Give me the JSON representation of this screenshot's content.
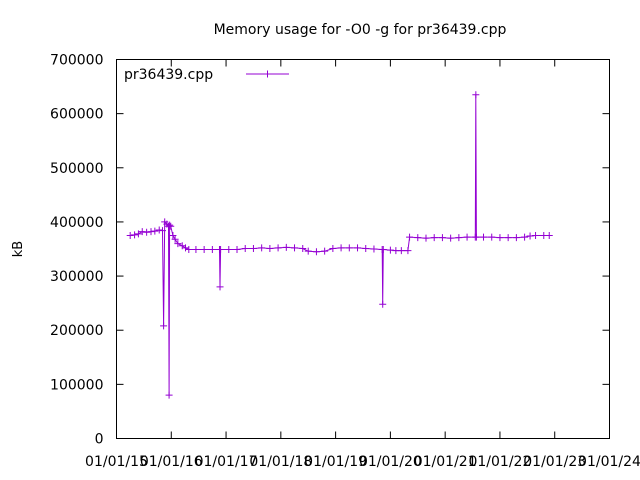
{
  "chart_data": {
    "type": "line",
    "title": "Memory usage for -O0 -g for pr36439.cpp",
    "xlabel": "",
    "ylabel": "kB",
    "xlim": [
      2015.0,
      2024.0
    ],
    "ylim": [
      0,
      700000
    ],
    "x_ticks": [
      {
        "x": 2015,
        "label": "01/01/15"
      },
      {
        "x": 2016,
        "label": "01/01/16"
      },
      {
        "x": 2017,
        "label": "01/01/17"
      },
      {
        "x": 2018,
        "label": "01/01/18"
      },
      {
        "x": 2019,
        "label": "01/01/19"
      },
      {
        "x": 2020,
        "label": "01/01/20"
      },
      {
        "x": 2021,
        "label": "01/01/21"
      },
      {
        "x": 2022,
        "label": "01/01/22"
      },
      {
        "x": 2023,
        "label": "01/01/23"
      },
      {
        "x": 2024,
        "label": "01/01/24"
      }
    ],
    "y_ticks": [
      {
        "y": 0,
        "label": "0"
      },
      {
        "y": 100000,
        "label": "100000"
      },
      {
        "y": 200000,
        "label": "200000"
      },
      {
        "y": 300000,
        "label": "300000"
      },
      {
        "y": 400000,
        "label": "400000"
      },
      {
        "y": 500000,
        "label": "500000"
      },
      {
        "y": 600000,
        "label": "600000"
      },
      {
        "y": 700000,
        "label": "700000"
      }
    ],
    "grid": false,
    "legend": "top-left",
    "series": [
      {
        "name": "pr36439.cpp",
        "color": "#9400d3",
        "points": [
          [
            2015.25,
            375000
          ],
          [
            2015.33,
            376000
          ],
          [
            2015.4,
            378000
          ],
          [
            2015.47,
            382000
          ],
          [
            2015.55,
            381000
          ],
          [
            2015.63,
            382000
          ],
          [
            2015.7,
            383000
          ],
          [
            2015.78,
            385000
          ],
          [
            2015.84,
            384000
          ],
          [
            2015.86,
            208000
          ],
          [
            2015.88,
            400000
          ],
          [
            2015.92,
            396000
          ],
          [
            2015.95,
            392000
          ],
          [
            2015.96,
            80000
          ],
          [
            2015.97,
            394000
          ],
          [
            2015.99,
            392000
          ],
          [
            2016.03,
            375000
          ],
          [
            2016.07,
            368000
          ],
          [
            2016.12,
            360000
          ],
          [
            2016.2,
            356000
          ],
          [
            2016.26,
            352000
          ],
          [
            2016.32,
            349000
          ],
          [
            2016.45,
            349000
          ],
          [
            2016.6,
            349000
          ],
          [
            2016.75,
            349000
          ],
          [
            2016.88,
            349000
          ],
          [
            2016.89,
            280000
          ],
          [
            2016.9,
            349000
          ],
          [
            2017.05,
            349000
          ],
          [
            2017.2,
            349000
          ],
          [
            2017.35,
            351000
          ],
          [
            2017.5,
            351000
          ],
          [
            2017.65,
            352000
          ],
          [
            2017.8,
            351000
          ],
          [
            2017.95,
            352000
          ],
          [
            2018.1,
            353000
          ],
          [
            2018.25,
            352000
          ],
          [
            2018.4,
            351000
          ],
          [
            2018.5,
            346000
          ],
          [
            2018.65,
            345000
          ],
          [
            2018.8,
            346000
          ],
          [
            2018.95,
            351000
          ],
          [
            2019.1,
            352000
          ],
          [
            2019.25,
            352000
          ],
          [
            2019.4,
            352000
          ],
          [
            2019.55,
            351000
          ],
          [
            2019.7,
            350000
          ],
          [
            2019.85,
            349000
          ],
          [
            2019.86,
            248000
          ],
          [
            2019.87,
            349000
          ],
          [
            2020.0,
            348000
          ],
          [
            2020.1,
            347000
          ],
          [
            2020.2,
            347000
          ],
          [
            2020.32,
            347000
          ],
          [
            2020.35,
            372000
          ],
          [
            2020.5,
            371000
          ],
          [
            2020.65,
            370000
          ],
          [
            2020.8,
            371000
          ],
          [
            2020.95,
            371000
          ],
          [
            2021.1,
            370000
          ],
          [
            2021.25,
            371000
          ],
          [
            2021.4,
            372000
          ],
          [
            2021.55,
            372000
          ],
          [
            2021.56,
            635000
          ],
          [
            2021.57,
            372000
          ],
          [
            2021.7,
            372000
          ],
          [
            2021.85,
            372000
          ],
          [
            2022.0,
            371000
          ],
          [
            2022.15,
            371000
          ],
          [
            2022.3,
            371000
          ],
          [
            2022.45,
            372000
          ],
          [
            2022.55,
            374000
          ],
          [
            2022.65,
            375000
          ],
          [
            2022.8,
            375000
          ],
          [
            2022.9,
            375000
          ]
        ]
      }
    ]
  }
}
